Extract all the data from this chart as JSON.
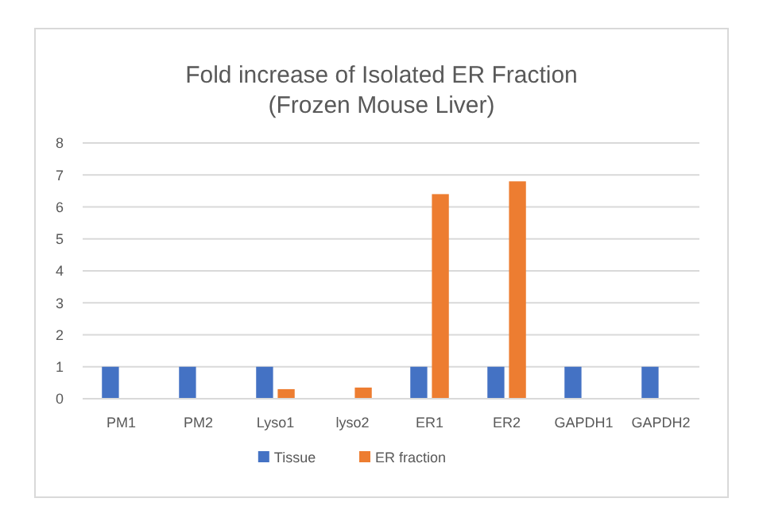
{
  "chart_data": {
    "type": "bar",
    "title": "Fold increase of Isolated ER Fraction",
    "subtitle": "(Frozen Mouse Liver)",
    "categories": [
      "PM1",
      "PM2",
      "Lyso1",
      "lyso2",
      "ER1",
      "ER2",
      "GAPDH1",
      "GAPDH2"
    ],
    "series": [
      {
        "name": "Tissue",
        "color": "#4472c4",
        "values": [
          1,
          1,
          1,
          null,
          1,
          1,
          1,
          1
        ]
      },
      {
        "name": "ER fraction",
        "color": "#ed7d31",
        "values": [
          null,
          null,
          0.3,
          0.35,
          6.4,
          6.8,
          null,
          null
        ]
      }
    ],
    "ylim": [
      0,
      8
    ],
    "yticks": [
      0,
      1,
      2,
      3,
      4,
      5,
      6,
      7,
      8
    ],
    "grid": "y",
    "legend": "bottom"
  }
}
